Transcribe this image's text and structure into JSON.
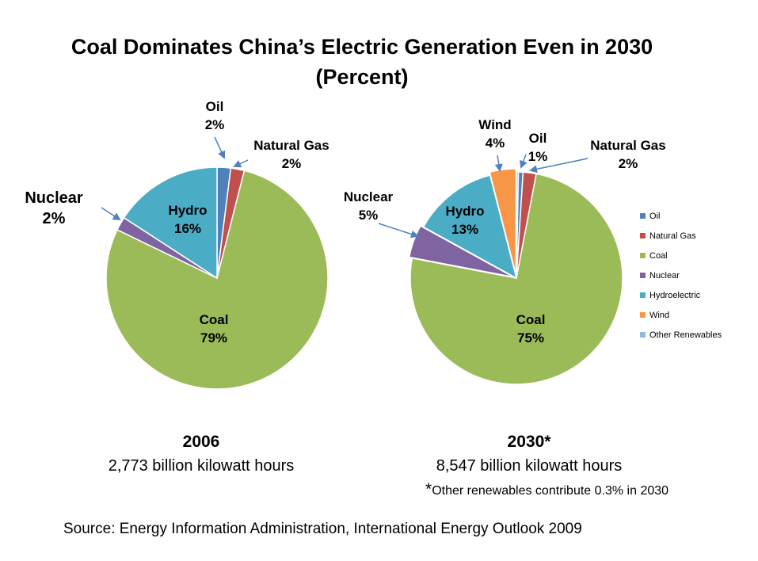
{
  "title_line1": "Coal Dominates China’s Electric Generation Even in 2030",
  "title_line2": "(Percent)",
  "colors": {
    "Oil": "#4F81BD",
    "Natural Gas": "#C0504D",
    "Coal": "#9BBB59",
    "Nuclear": "#8064A2",
    "Hydroelectric": "#4BACC6",
    "Wind": "#F79646",
    "Other Renewables": "#93B7E3"
  },
  "chart_data": [
    {
      "type": "pie",
      "year": "2006",
      "total": "2,773 billion kilowatt hours",
      "slices": [
        {
          "name": "Oil",
          "value": 2
        },
        {
          "name": "Natural Gas",
          "value": 2
        },
        {
          "name": "Coal",
          "value": 79
        },
        {
          "name": "Nuclear",
          "value": 2
        },
        {
          "name": "Hydroelectric",
          "value": 16
        }
      ],
      "labels": [
        {
          "name": "Oil",
          "text": "Oil",
          "pct": "2%"
        },
        {
          "name": "Natural Gas",
          "text": "Natural Gas",
          "pct": "2%"
        },
        {
          "name": "Coal",
          "text": "Coal",
          "pct": "79%"
        },
        {
          "name": "Nuclear",
          "text": "Nuclear",
          "pct": "2%"
        },
        {
          "name": "Hydroelectric",
          "text": "Hydro",
          "pct": "16%"
        }
      ]
    },
    {
      "type": "pie",
      "year": "2030*",
      "total": "8,547 billion kilowatt hours",
      "note": "Other renewables contribute 0.3% in 2030",
      "slices": [
        {
          "name": "Other Renewables",
          "value": 0.3
        },
        {
          "name": "Oil",
          "value": 0.7
        },
        {
          "name": "Natural Gas",
          "value": 2
        },
        {
          "name": "Coal",
          "value": 75
        },
        {
          "name": "Nuclear",
          "value": 5
        },
        {
          "name": "Hydroelectric",
          "value": 13
        },
        {
          "name": "Wind",
          "value": 4
        }
      ],
      "labels": [
        {
          "name": "Wind",
          "text": "Wind",
          "pct": "4%"
        },
        {
          "name": "Oil",
          "text": "Oil",
          "pct": "1%"
        },
        {
          "name": "Natural Gas",
          "text": "Natural Gas",
          "pct": "2%"
        },
        {
          "name": "Nuclear",
          "text": "Nuclear",
          "pct": "5%"
        },
        {
          "name": "Hydroelectric",
          "text": "Hydro",
          "pct": "13%"
        },
        {
          "name": "Coal",
          "text": "Coal",
          "pct": "75%"
        }
      ],
      "legend": [
        "Oil",
        "Natural Gas",
        "Coal",
        "Nuclear",
        "Hydroelectric",
        "Wind",
        "Other Renewables"
      ],
      "legend_placement": "right"
    }
  ],
  "source": "Source: Energy Information Administration, International Energy Outlook 2009"
}
